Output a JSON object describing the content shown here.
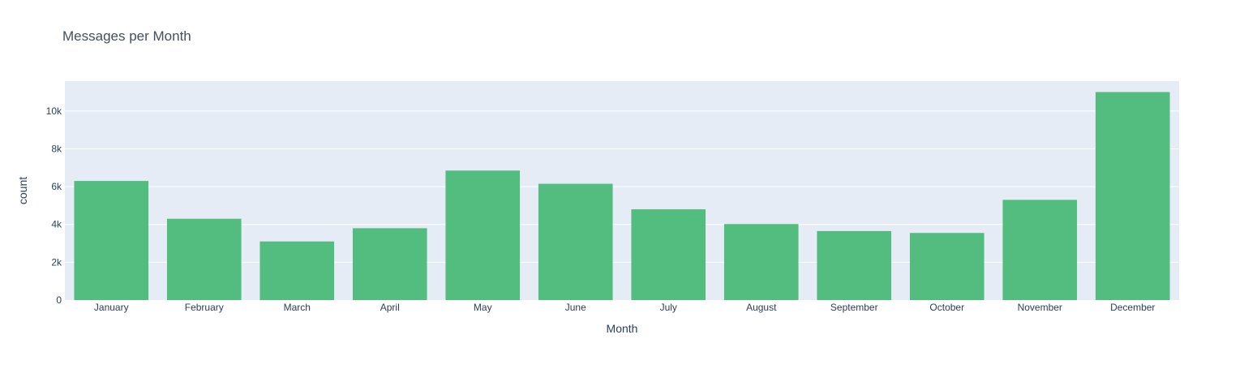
{
  "chart_data": {
    "type": "bar",
    "title": "Messages per Month",
    "xlabel": "Month",
    "ylabel": "count",
    "categories": [
      "January",
      "February",
      "March",
      "April",
      "May",
      "June",
      "July",
      "August",
      "September",
      "October",
      "November",
      "December"
    ],
    "values": [
      6300,
      4300,
      3100,
      3800,
      6850,
      6150,
      4800,
      4020,
      3650,
      3550,
      5300,
      11000
    ],
    "ylim": [
      0,
      11580
    ],
    "yticks": [
      0,
      2000,
      4000,
      6000,
      8000,
      10000
    ],
    "ytick_labels": [
      "0",
      "2k",
      "4k",
      "6k",
      "8k",
      "10k"
    ],
    "grid": true,
    "legend": "none",
    "colors": {
      "bar": "#52bd7f",
      "plot_background": "#e5ecf6",
      "grid": "#ffffff",
      "text": "#2a3f5f",
      "title": "#444f5f"
    }
  }
}
